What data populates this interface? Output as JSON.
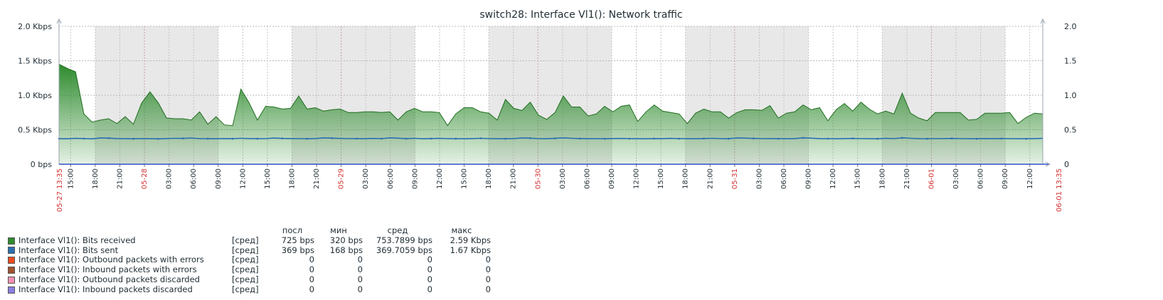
{
  "chart_data": {
    "type": "area",
    "title": "switch28: Interface Vl1(): Network traffic",
    "x_start": "05-27 13:35",
    "x_end": "06-01 13:35",
    "x_ticks": [
      "15:00",
      "18:00",
      "21:00",
      "05-28",
      "03:00",
      "06:00",
      "09:00",
      "12:00",
      "15:00",
      "18:00",
      "21:00",
      "05-29",
      "03:00",
      "06:00",
      "09:00",
      "12:00",
      "15:00",
      "18:00",
      "21:00",
      "05-30",
      "03:00",
      "06:00",
      "09:00",
      "12:00",
      "15:00",
      "18:00",
      "21:00",
      "05-31",
      "03:00",
      "06:00",
      "09:00",
      "12:00",
      "15:00",
      "18:00",
      "21:00",
      "06-01",
      "03:00",
      "06:00",
      "09:00",
      "12:00"
    ],
    "y_left_ticks": [
      "0 bps",
      "0.5 Kbps",
      "1.0 Kbps",
      "1.5 Kbps",
      "2.0 Kbps"
    ],
    "y_right_ticks": [
      "0",
      "0.5",
      "1.0",
      "1.5",
      "2.0"
    ],
    "ylim": [
      0,
      2000
    ],
    "yunit": "bps",
    "grid": true,
    "series": [
      {
        "name": "Interface Vl1(): Bits received",
        "color": "#2e8b2e",
        "fill": "area",
        "values": [
          1450,
          1390,
          1340,
          730,
          610,
          640,
          660,
          590,
          690,
          580,
          890,
          1050,
          890,
          670,
          660,
          660,
          640,
          760,
          580,
          690,
          570,
          560,
          1090,
          890,
          640,
          840,
          830,
          800,
          810,
          990,
          800,
          820,
          770,
          790,
          800,
          750,
          750,
          760,
          760,
          750,
          760,
          640,
          760,
          810,
          760,
          760,
          750,
          560,
          730,
          820,
          820,
          760,
          740,
          640,
          940,
          810,
          780,
          900,
          710,
          650,
          750,
          990,
          830,
          830,
          700,
          730,
          840,
          760,
          840,
          860,
          620,
          760,
          860,
          770,
          750,
          730,
          590,
          740,
          800,
          760,
          760,
          670,
          750,
          790,
          790,
          780,
          850,
          670,
          740,
          760,
          860,
          790,
          820,
          630,
          790,
          880,
          770,
          900,
          800,
          730,
          770,
          730,
          1030,
          740,
          670,
          630,
          750,
          750,
          750,
          750,
          640,
          650,
          740,
          740,
          740,
          750,
          590,
          680,
          740,
          730
        ],
        "legend_agg": "[сред]",
        "last": "725 bps",
        "min": "320 bps",
        "avg": "753.7899 bps",
        "max": "2.59 Kbps"
      },
      {
        "name": "Interface Vl1(): Bits sent",
        "color": "#2a6fb0",
        "fill": "line",
        "values": [
          370,
          369,
          375,
          372,
          368,
          380,
          378,
          372,
          370,
          369,
          371,
          370,
          368,
          372,
          376,
          374,
          379,
          371,
          370,
          369,
          372,
          370,
          376,
          372,
          370,
          371,
          379,
          374,
          372,
          371,
          369,
          372,
          382,
          378,
          374,
          371,
          372,
          370,
          374,
          371,
          382,
          378,
          370,
          376,
          369,
          372,
          375,
          371,
          370,
          369,
          372,
          376,
          371,
          370,
          369,
          372,
          380,
          378,
          371,
          370,
          375,
          382,
          376,
          372,
          370,
          371,
          369,
          372,
          374,
          371,
          370,
          369,
          372,
          370,
          375,
          371,
          370,
          369,
          372,
          376,
          371,
          370,
          380,
          378,
          374,
          371,
          372,
          370,
          369,
          372,
          382,
          378,
          370,
          371,
          369,
          372,
          374,
          371,
          370,
          369,
          375,
          371,
          382,
          376,
          370,
          369,
          371,
          372,
          374,
          371,
          370,
          369,
          372,
          370,
          372,
          371,
          370,
          369,
          372,
          375
        ],
        "legend_agg": "[сред]",
        "last": "369 bps",
        "min": "168 bps",
        "avg": "369.7059 bps",
        "max": "1.67 Kbps"
      },
      {
        "name": "Interface Vl1(): Outbound packets with errors",
        "color": "#ee4b22",
        "values": [],
        "legend_agg": "[сред]",
        "last": "0",
        "min": "0",
        "avg": "0",
        "max": "0"
      },
      {
        "name": "Interface Vl1(): Inbound packets with errors",
        "color": "#a0522d",
        "values": [],
        "legend_agg": "[сред]",
        "last": "0",
        "min": "0",
        "avg": "0",
        "max": "0"
      },
      {
        "name": "Interface Vl1(): Outbound packets discarded",
        "color": "#f78fb3",
        "values": [],
        "legend_agg": "[сред]",
        "last": "0",
        "min": "0",
        "avg": "0",
        "max": "0"
      },
      {
        "name": "Interface Vl1(): Inbound packets discarded",
        "color": "#8a7fe0",
        "values": [],
        "legend_agg": "[сред]",
        "last": "0",
        "min": "0",
        "avg": "0",
        "max": "0"
      }
    ],
    "legend_headers": {
      "last": "посл",
      "min": "мин",
      "avg": "сред",
      "max": "макс"
    },
    "legend_placement": "bottom-left"
  }
}
